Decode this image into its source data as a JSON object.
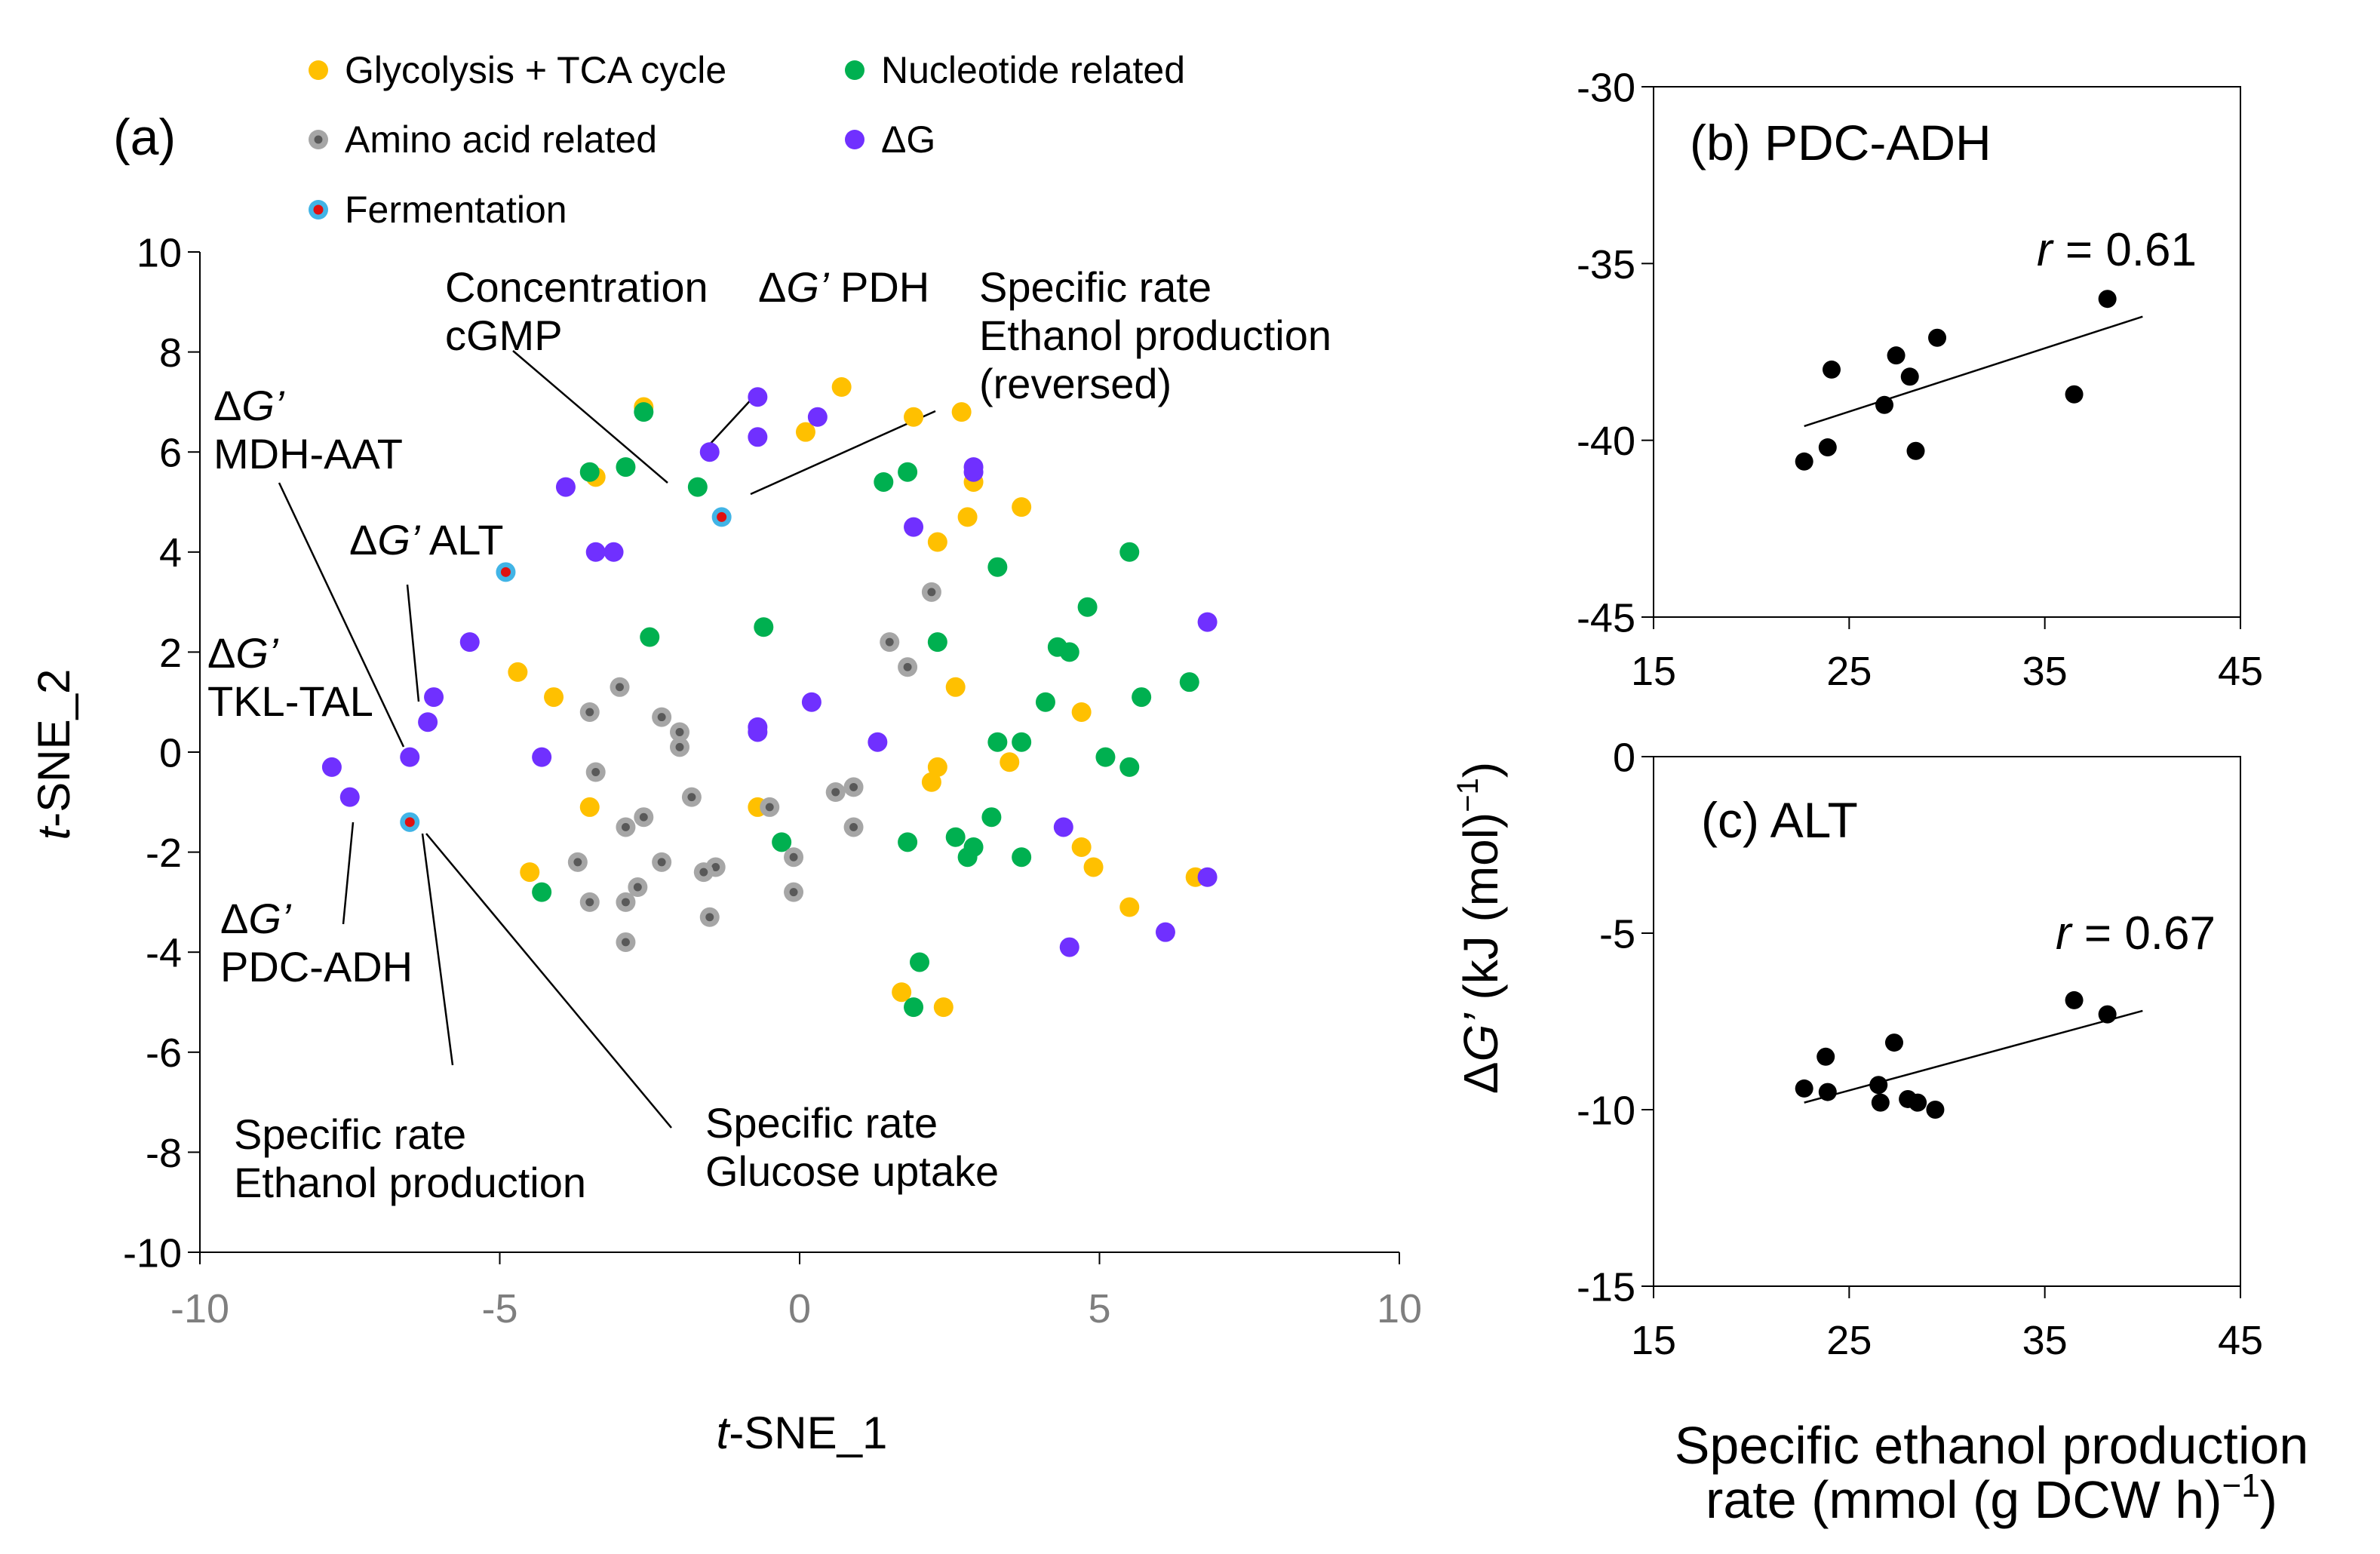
{
  "colors": {
    "glycolysis": "#FFC000",
    "nucleotide": "#00B050",
    "amino_acid": "#A6A6A6",
    "amino_acid_center": "#595959",
    "deltaG": "#7030FF",
    "fermentation_outline": "#41B4E6",
    "fermentation_center": "#E01010",
    "marker_black": "#000000",
    "axis_grey": "#7F7F7F"
  },
  "chart_data": [
    {
      "id": "a",
      "type": "scatter",
      "panel_label": "(a)",
      "xlabel_italic": "t",
      "xlabel_rest": "-SNE_1",
      "ylabel_italic": "t",
      "ylabel_rest": "-SNE_2",
      "xlim": [
        -10,
        10
      ],
      "ylim": [
        -10,
        10
      ],
      "xticks": [
        -10,
        -5,
        0,
        5,
        10
      ],
      "yticks": [
        -10,
        -8,
        -6,
        -4,
        -2,
        0,
        2,
        4,
        6,
        8,
        10
      ],
      "xtick_labels": [
        "-10",
        "-5",
        "0",
        "5",
        "10"
      ],
      "ytick_labels": [
        "-10",
        "-8",
        "-6",
        "-4",
        "-2",
        "0",
        "2",
        "4",
        "6",
        "8",
        "10"
      ],
      "grid": false,
      "legend_position": "top",
      "series": [
        {
          "name": "Glycolysis + TCA cycle",
          "key": "glycolysis",
          "points": [
            [
              -2.6,
              6.9
            ],
            [
              0.7,
              7.3
            ],
            [
              0.1,
              6.4
            ],
            [
              1.9,
              6.7
            ],
            [
              2.7,
              6.8
            ],
            [
              -3.4,
              5.5
            ],
            [
              2.9,
              5.4
            ],
            [
              2.8,
              4.7
            ],
            [
              3.7,
              4.9
            ],
            [
              2.3,
              4.2
            ],
            [
              -4.7,
              1.6
            ],
            [
              -4.1,
              1.1
            ],
            [
              2.6,
              1.3
            ],
            [
              4.7,
              0.8
            ],
            [
              -3.5,
              -1.1
            ],
            [
              -0.7,
              -1.1
            ],
            [
              2.3,
              -0.3
            ],
            [
              2.2,
              -0.6
            ],
            [
              3.5,
              -0.2
            ],
            [
              -4.5,
              -2.4
            ],
            [
              4.7,
              -1.9
            ],
            [
              4.9,
              -2.3
            ],
            [
              6.6,
              -2.5
            ],
            [
              5.5,
              -3.1
            ],
            [
              1.7,
              -4.8
            ],
            [
              2.4,
              -5.1
            ]
          ]
        },
        {
          "name": "Nucleotide related",
          "key": "nucleotide",
          "points": [
            [
              -2.6,
              6.8
            ],
            [
              -3.5,
              5.6
            ],
            [
              -2.9,
              5.7
            ],
            [
              -1.7,
              5.3
            ],
            [
              1.4,
              5.4
            ],
            [
              1.8,
              5.6
            ],
            [
              3.3,
              3.7
            ],
            [
              5.5,
              4.0
            ],
            [
              4.8,
              2.9
            ],
            [
              -2.5,
              2.3
            ],
            [
              -0.6,
              2.5
            ],
            [
              2.3,
              2.2
            ],
            [
              4.3,
              2.1
            ],
            [
              4.5,
              2.0
            ],
            [
              6.5,
              1.4
            ],
            [
              5.7,
              1.1
            ],
            [
              4.1,
              1.0
            ],
            [
              3.3,
              0.2
            ],
            [
              3.7,
              0.2
            ],
            [
              5.1,
              -0.1
            ],
            [
              5.5,
              -0.3
            ],
            [
              3.2,
              -1.3
            ],
            [
              -0.3,
              -1.8
            ],
            [
              1.8,
              -1.8
            ],
            [
              2.6,
              -1.7
            ],
            [
              2.9,
              -1.9
            ],
            [
              2.8,
              -2.1
            ],
            [
              3.7,
              -2.1
            ],
            [
              -4.3,
              -2.8
            ],
            [
              2.0,
              -4.2
            ],
            [
              1.9,
              -5.1
            ]
          ]
        },
        {
          "name": "Amino acid related",
          "key": "amino_acid",
          "points": [
            [
              2.2,
              3.2
            ],
            [
              1.5,
              2.2
            ],
            [
              1.8,
              1.7
            ],
            [
              -3.0,
              1.3
            ],
            [
              -3.5,
              0.8
            ],
            [
              -2.3,
              0.7
            ],
            [
              -2.0,
              0.4
            ],
            [
              -2.0,
              0.1
            ],
            [
              -3.4,
              -0.4
            ],
            [
              -1.8,
              -0.9
            ],
            [
              0.6,
              -0.8
            ],
            [
              0.9,
              -0.7
            ],
            [
              -0.5,
              -1.1
            ],
            [
              -2.6,
              -1.3
            ],
            [
              -2.9,
              -1.5
            ],
            [
              0.9,
              -1.5
            ],
            [
              -2.3,
              -2.2
            ],
            [
              -3.7,
              -2.2
            ],
            [
              -1.4,
              -2.3
            ],
            [
              -1.6,
              -2.4
            ],
            [
              -0.1,
              -2.1
            ],
            [
              -2.7,
              -2.7
            ],
            [
              -0.1,
              -2.8
            ],
            [
              -3.5,
              -3.0
            ],
            [
              -2.9,
              -3.0
            ],
            [
              -1.5,
              -3.3
            ],
            [
              -2.9,
              -3.8
            ]
          ]
        },
        {
          "name": "ΔG",
          "key": "deltaG",
          "points": [
            [
              -0.7,
              7.1
            ],
            [
              0.3,
              6.7
            ],
            [
              -0.7,
              6.3
            ],
            [
              -1.5,
              6.0
            ],
            [
              -3.9,
              5.3
            ],
            [
              2.9,
              5.7
            ],
            [
              2.9,
              5.6
            ],
            [
              1.9,
              4.5
            ],
            [
              -3.4,
              4.0
            ],
            [
              -3.1,
              4.0
            ],
            [
              6.8,
              2.6
            ],
            [
              -5.5,
              2.2
            ],
            [
              -6.1,
              1.1
            ],
            [
              0.2,
              1.0
            ],
            [
              -0.7,
              0.5
            ],
            [
              -0.7,
              0.4
            ],
            [
              -6.2,
              0.6
            ],
            [
              1.3,
              0.2
            ],
            [
              -4.3,
              -0.1
            ],
            [
              -6.5,
              -0.1
            ],
            [
              -7.8,
              -0.3
            ],
            [
              -7.5,
              -0.9
            ],
            [
              4.4,
              -1.5
            ],
            [
              6.8,
              -2.5
            ],
            [
              6.1,
              -3.6
            ],
            [
              4.5,
              -3.9
            ]
          ]
        },
        {
          "name": "Fermentation",
          "key": "fermentation",
          "points": [
            [
              -1.3,
              4.7
            ],
            [
              -4.9,
              3.6
            ],
            [
              -6.5,
              -1.4
            ]
          ]
        }
      ],
      "annotations": [
        {
          "lines": [
            {
              "segments": [
                {
                  "text": "Concentration",
                  "italic": false
                }
              ]
            },
            {
              "segments": [
                {
                  "text": "cGMP",
                  "italic": false
                }
              ]
            }
          ]
        },
        {
          "lines": [
            {
              "segments": [
                {
                  "text": "Δ",
                  "italic": false
                },
                {
                  "text": "G’",
                  "italic": true
                },
                {
                  "text": " PDH",
                  "italic": false
                }
              ]
            }
          ]
        },
        {
          "lines": [
            {
              "segments": [
                {
                  "text": "Specific rate",
                  "italic": false
                }
              ]
            },
            {
              "segments": [
                {
                  "text": "Ethanol production",
                  "italic": false
                }
              ]
            },
            {
              "segments": [
                {
                  "text": "(reversed)",
                  "italic": false
                }
              ]
            }
          ]
        },
        {
          "lines": [
            {
              "segments": [
                {
                  "text": "Δ",
                  "italic": false
                },
                {
                  "text": "G’",
                  "italic": true
                }
              ]
            },
            {
              "segments": [
                {
                  "text": "MDH-AAT",
                  "italic": false
                }
              ]
            }
          ]
        },
        {
          "lines": [
            {
              "segments": [
                {
                  "text": "Δ",
                  "italic": false
                },
                {
                  "text": "G’",
                  "italic": true
                },
                {
                  "text": " ALT",
                  "italic": false
                }
              ]
            }
          ]
        },
        {
          "lines": [
            {
              "segments": [
                {
                  "text": "Δ",
                  "italic": false
                },
                {
                  "text": "G’",
                  "italic": true
                }
              ]
            },
            {
              "segments": [
                {
                  "text": "TKL-TAL",
                  "italic": false
                }
              ]
            }
          ]
        },
        {
          "lines": [
            {
              "segments": [
                {
                  "text": "Δ",
                  "italic": false
                },
                {
                  "text": "G’",
                  "italic": true
                }
              ]
            },
            {
              "segments": [
                {
                  "text": "PDC-ADH",
                  "italic": false
                }
              ]
            }
          ]
        },
        {
          "lines": [
            {
              "segments": [
                {
                  "text": "Specific rate",
                  "italic": false
                }
              ]
            },
            {
              "segments": [
                {
                  "text": "Ethanol production",
                  "italic": false
                }
              ]
            }
          ]
        },
        {
          "lines": [
            {
              "segments": [
                {
                  "text": "Specific rate",
                  "italic": false
                }
              ]
            },
            {
              "segments": [
                {
                  "text": "Glucose uptake",
                  "italic": false
                }
              ]
            }
          ]
        }
      ]
    },
    {
      "id": "b",
      "type": "scatter",
      "panel_label": "(b) PDC-ADH",
      "r_label_italic": "r",
      "r_label_rest": " = 0.61",
      "xlim": [
        15,
        45
      ],
      "ylim": [
        -45,
        -30
      ],
      "xticks": [
        15,
        25,
        35,
        45
      ],
      "yticks": [
        -45,
        -40,
        -35,
        -30
      ],
      "xtick_labels": [
        "15",
        "25",
        "35",
        "45"
      ],
      "ytick_labels": [
        "-45",
        "-40",
        "-35",
        "-30"
      ],
      "grid": false,
      "points": [
        [
          22.7,
          -40.6
        ],
        [
          23.9,
          -40.2
        ],
        [
          24.1,
          -38.0
        ],
        [
          26.8,
          -39.0
        ],
        [
          27.4,
          -37.6
        ],
        [
          28.1,
          -38.2
        ],
        [
          28.4,
          -40.3
        ],
        [
          29.5,
          -37.1
        ],
        [
          36.5,
          -38.7
        ],
        [
          38.2,
          -36.0
        ]
      ],
      "trendline": [
        [
          22.7,
          -39.6
        ],
        [
          40.0,
          -36.5
        ]
      ]
    },
    {
      "id": "c",
      "type": "scatter",
      "panel_label": "(c) ALT",
      "r_label_italic": "r",
      "r_label_rest": " = 0.67",
      "xlim": [
        15,
        45
      ],
      "ylim": [
        -15,
        0
      ],
      "xticks": [
        15,
        25,
        35,
        45
      ],
      "yticks": [
        -15,
        -10,
        -5,
        0
      ],
      "xtick_labels": [
        "15",
        "25",
        "35",
        "45"
      ],
      "ytick_labels": [
        "-15",
        "-10",
        "-5",
        "0"
      ],
      "grid": false,
      "points": [
        [
          22.7,
          -9.4
        ],
        [
          23.8,
          -8.5
        ],
        [
          23.9,
          -9.5
        ],
        [
          26.5,
          -9.3
        ],
        [
          26.6,
          -9.8
        ],
        [
          27.3,
          -8.1
        ],
        [
          28.0,
          -9.7
        ],
        [
          28.5,
          -9.8
        ],
        [
          29.4,
          -10.0
        ],
        [
          36.5,
          -6.9
        ],
        [
          38.2,
          -7.3
        ]
      ],
      "trendline": [
        [
          22.7,
          -9.8
        ],
        [
          40.0,
          -7.2
        ]
      ]
    }
  ],
  "shared_ylabel": {
    "prefix": "Δ",
    "italic": "G’",
    "rest": " (kJ (mol)",
    "sup": "−1",
    "close": ")"
  },
  "shared_xlabel": {
    "line1": "Specific ethanol production",
    "line2_prefix": "rate (mmol (g DCW h)",
    "line2_sup": "−1",
    "line2_close": ")"
  }
}
